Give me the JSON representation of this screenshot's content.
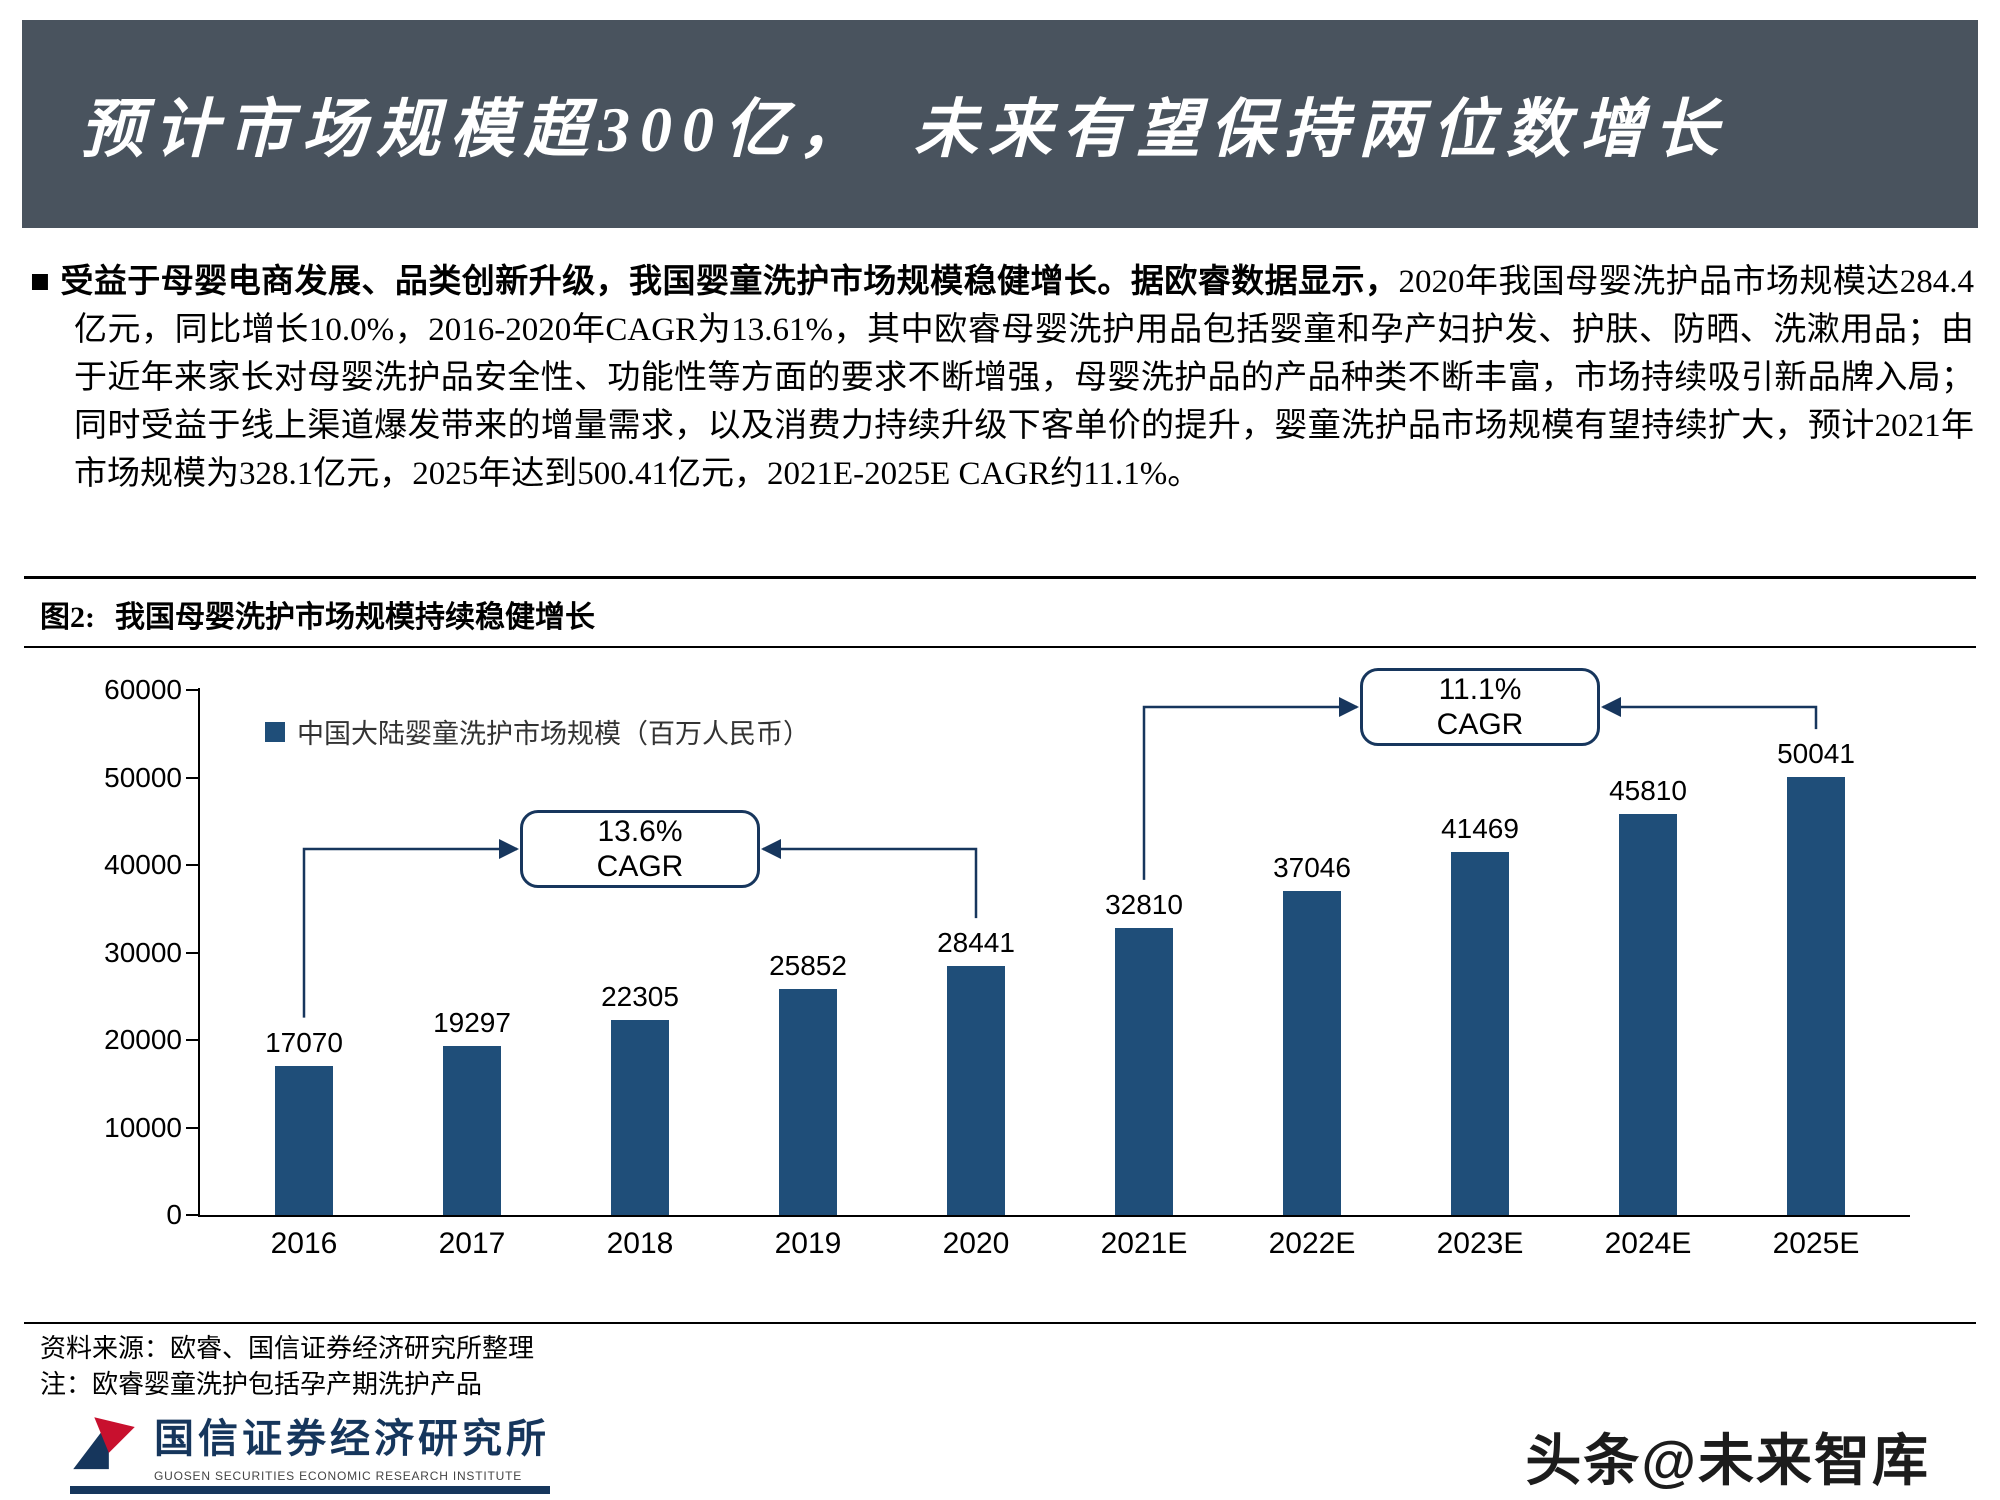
{
  "slide": {
    "title": "预计市场规模超300亿，　未来有望保持两位数增长",
    "bullet": "■",
    "body_bold": "受益于母婴电商发展、品类创新升级，我国婴童洗护市场规模稳健增长。据欧睿数据显示，",
    "body_rest": "2020年我国母婴洗护品市场规模达284.4亿元，同比增长10.0%，2016-2020年CAGR为13.61%，其中欧睿母婴洗护用品包括婴童和孕产妇护发、护肤、防晒、洗漱用品；由于近年来家长对母婴洗护品安全性、功能性等方面的要求不断增强，母婴洗护品的产品种类不断丰富，市场持续吸引新品牌入局；同时受益于线上渠道爆发带来的增量需求，以及消费力持续升级下客单价的提升，婴童洗护品市场规模有望持续扩大，预计2021年市场规模为328.1亿元，2025年达到500.41亿元，2021E-2025E CAGR约11.1%。",
    "figure_label": "图2:",
    "figure_title": "我国母婴洗护市场规模持续稳健增长",
    "source_line1": "资料来源：欧睿、国信证券经济研究所整理",
    "source_line2": "注：欧睿婴童洗护包括孕产期洗护产品",
    "footer": {
      "org_cn": "国信证券经济研究所",
      "org_en": "GUOSEN SECURITIES ECONOMIC RESEARCH INSTITUTE",
      "watermark": "头条@未来智库"
    }
  },
  "chart_data": {
    "type": "bar",
    "legend": "中国大陆婴童洗护市场规模（百万人民币）",
    "legend_position": "top-left",
    "categories": [
      "2016",
      "2017",
      "2018",
      "2019",
      "2020",
      "2021E",
      "2022E",
      "2023E",
      "2024E",
      "2025E"
    ],
    "values": [
      17070,
      19297,
      22305,
      25852,
      28441,
      32810,
      37046,
      41469,
      45810,
      50041
    ],
    "ylim": [
      0,
      60000
    ],
    "yticks": [
      0,
      10000,
      20000,
      30000,
      40000,
      50000,
      60000
    ],
    "grid": false,
    "bar_color": "#1F4E79",
    "arrow_color": "#17365D",
    "annotations": [
      {
        "rate": "13.6%",
        "label": "CAGR",
        "from_index": 0,
        "to_index": 4,
        "level_y": 189
      },
      {
        "rate": "11.1%",
        "label": "CAGR",
        "from_index": 5,
        "to_index": 9,
        "level_y": 47
      }
    ]
  }
}
